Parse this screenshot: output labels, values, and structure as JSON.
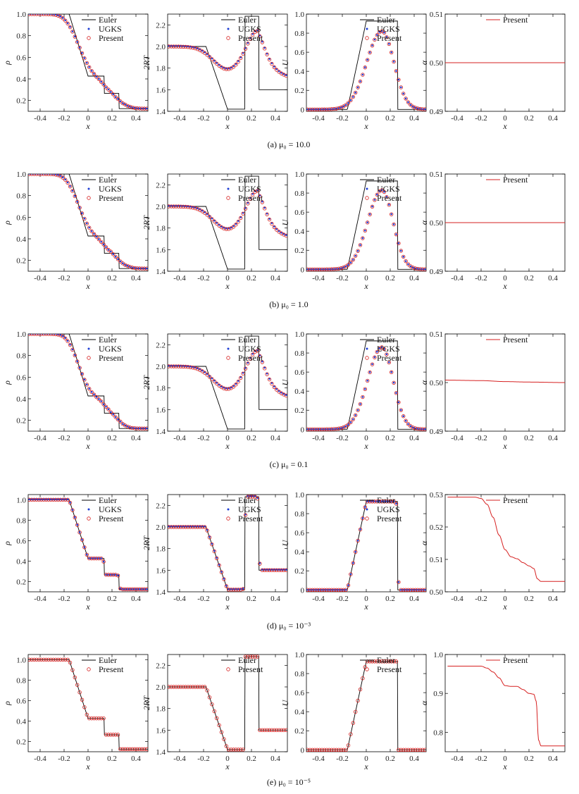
{
  "captions": [
    "(a) μ₀ = 10.0",
    "(b) μ₀ = 1.0",
    "(c) μ₀ = 0.1",
    "(d) μ₀ = 10⁻³",
    "(e) μ₀ = 10⁻⁵"
  ],
  "colors": {
    "euler": "#000000",
    "ugks": "#1f3fd6",
    "present": "#d62020"
  },
  "chart_data": [
    {
      "type": "line",
      "row": 0,
      "col": 0,
      "xlabel": "x",
      "ylabel": "ρ",
      "xlim": [
        -0.5,
        0.5
      ],
      "ylim": [
        0.1,
        1.0
      ],
      "xticks": [
        -0.4,
        -0.2,
        0,
        0.2,
        0.4
      ],
      "yticks": [
        0.2,
        0.4,
        0.6,
        0.8,
        1.0
      ],
      "legend": [
        "Euler",
        "UGKS",
        "Present"
      ],
      "profile": "rho",
      "eps": 0.3
    },
    {
      "type": "line",
      "row": 0,
      "col": 1,
      "xlabel": "x",
      "ylabel": "2RT",
      "xlim": [
        -0.5,
        0.5
      ],
      "ylim": [
        1.4,
        2.3
      ],
      "xticks": [
        -0.4,
        -0.2,
        0,
        0.2,
        0.4
      ],
      "yticks": [
        1.4,
        1.6,
        1.8,
        2.0,
        2.2
      ],
      "legend": [
        "Euler",
        "UGKS",
        "Present"
      ],
      "profile": "T",
      "eps": 0.3
    },
    {
      "type": "line",
      "row": 0,
      "col": 2,
      "xlabel": "x",
      "ylabel": "U",
      "xlim": [
        -0.5,
        0.5
      ],
      "ylim": [
        -0.02,
        1.0
      ],
      "xticks": [
        -0.4,
        -0.2,
        0,
        0.2,
        0.4
      ],
      "yticks": [
        0,
        0.2,
        0.4,
        0.6,
        0.8,
        1.0
      ],
      "legend": [
        "Euler",
        "UGKS",
        "Present"
      ],
      "profile": "U",
      "eps": 0.3
    },
    {
      "type": "line",
      "row": 0,
      "col": 3,
      "xlabel": "x",
      "ylabel": "α",
      "xlim": [
        -0.5,
        0.5
      ],
      "ylim": [
        0.49,
        0.51
      ],
      "xticks": [
        -0.4,
        -0.2,
        0,
        0.2,
        0.4
      ],
      "yticks": [
        0.49,
        0.5,
        0.51
      ],
      "legend": [
        "Present"
      ],
      "profile": "alpha",
      "alpha": {
        "x": [
          -0.5,
          0.5
        ],
        "y": [
          0.5,
          0.5
        ]
      }
    },
    {
      "type": "line",
      "row": 1,
      "col": 0,
      "xlabel": "x",
      "ylabel": "ρ",
      "xlim": [
        -0.5,
        0.5
      ],
      "ylim": [
        0.1,
        1.0
      ],
      "xticks": [
        -0.4,
        -0.2,
        0,
        0.2,
        0.4
      ],
      "yticks": [
        0.2,
        0.4,
        0.6,
        0.8,
        1.0
      ],
      "legend": [
        "Euler",
        "UGKS",
        "Present"
      ],
      "profile": "rho",
      "eps": 0.28
    },
    {
      "type": "line",
      "row": 1,
      "col": 1,
      "xlabel": "x",
      "ylabel": "2RT",
      "xlim": [
        -0.5,
        0.5
      ],
      "ylim": [
        1.4,
        2.3
      ],
      "xticks": [
        -0.4,
        -0.2,
        0,
        0.2,
        0.4
      ],
      "yticks": [
        1.4,
        1.6,
        1.8,
        2.0,
        2.2
      ],
      "legend": [
        "Euler",
        "UGKS",
        "Present"
      ],
      "profile": "T",
      "eps": 0.28
    },
    {
      "type": "line",
      "row": 1,
      "col": 2,
      "xlabel": "x",
      "ylabel": "U",
      "xlim": [
        -0.5,
        0.5
      ],
      "ylim": [
        -0.02,
        1.0
      ],
      "xticks": [
        -0.4,
        -0.2,
        0,
        0.2,
        0.4
      ],
      "yticks": [
        0,
        0.2,
        0.4,
        0.6,
        0.8,
        1.0
      ],
      "legend": [
        "Euler",
        "UGKS",
        "Present"
      ],
      "profile": "U",
      "eps": 0.28
    },
    {
      "type": "line",
      "row": 1,
      "col": 3,
      "xlabel": "x",
      "ylabel": "α",
      "xlim": [
        -0.5,
        0.5
      ],
      "ylim": [
        0.49,
        0.51
      ],
      "xticks": [
        -0.4,
        -0.2,
        0,
        0.2,
        0.4
      ],
      "yticks": [
        0.49,
        0.5,
        0.51
      ],
      "legend": [
        "Present"
      ],
      "profile": "alpha",
      "alpha": {
        "x": [
          -0.5,
          0.5
        ],
        "y": [
          0.5,
          0.5
        ]
      }
    },
    {
      "type": "line",
      "row": 2,
      "col": 0,
      "xlabel": "x",
      "ylabel": "ρ",
      "xlim": [
        -0.5,
        0.5
      ],
      "ylim": [
        0.1,
        1.0
      ],
      "xticks": [
        -0.4,
        -0.2,
        0,
        0.2,
        0.4
      ],
      "yticks": [
        0.2,
        0.4,
        0.6,
        0.8,
        1.0
      ],
      "legend": [
        "Euler",
        "UGKS",
        "Present"
      ],
      "profile": "rho",
      "eps": 0.24
    },
    {
      "type": "line",
      "row": 2,
      "col": 1,
      "xlabel": "x",
      "ylabel": "2RT",
      "xlim": [
        -0.5,
        0.5
      ],
      "ylim": [
        1.4,
        2.3
      ],
      "xticks": [
        -0.4,
        -0.2,
        0,
        0.2,
        0.4
      ],
      "yticks": [
        1.4,
        1.6,
        1.8,
        2.0,
        2.2
      ],
      "legend": [
        "Euler",
        "UGKS",
        "Present"
      ],
      "profile": "T",
      "eps": 0.24
    },
    {
      "type": "line",
      "row": 2,
      "col": 2,
      "xlabel": "x",
      "ylabel": "U",
      "xlim": [
        -0.5,
        0.5
      ],
      "ylim": [
        -0.02,
        1.0
      ],
      "xticks": [
        -0.4,
        -0.2,
        0,
        0.2,
        0.4
      ],
      "yticks": [
        0,
        0.2,
        0.4,
        0.6,
        0.8,
        1.0
      ],
      "legend": [
        "Euler",
        "UGKS",
        "Present"
      ],
      "profile": "U",
      "eps": 0.24
    },
    {
      "type": "line",
      "row": 2,
      "col": 3,
      "xlabel": "x",
      "ylabel": "α",
      "xlim": [
        -0.5,
        0.5
      ],
      "ylim": [
        0.49,
        0.51
      ],
      "xticks": [
        -0.4,
        -0.2,
        0,
        0.2,
        0.4
      ],
      "yticks": [
        0.49,
        0.5,
        0.51
      ],
      "legend": [
        "Present"
      ],
      "profile": "alpha",
      "alpha": {
        "x": [
          -0.5,
          -0.2,
          0,
          0.2,
          0.5
        ],
        "y": [
          0.5005,
          0.5004,
          0.5002,
          0.5001,
          0.5
        ]
      }
    },
    {
      "type": "line",
      "row": 3,
      "col": 0,
      "xlabel": "x",
      "ylabel": "ρ",
      "xlim": [
        -0.5,
        0.5
      ],
      "ylim": [
        0.1,
        1.05
      ],
      "xticks": [
        -0.4,
        -0.2,
        0,
        0.2,
        0.4
      ],
      "yticks": [
        0.2,
        0.4,
        0.6,
        0.8,
        1.0
      ],
      "legend": [
        "Euler",
        "UGKS",
        "Present"
      ],
      "profile": "rho",
      "eps": 0.012
    },
    {
      "type": "line",
      "row": 3,
      "col": 1,
      "xlabel": "x",
      "ylabel": "2RT",
      "xlim": [
        -0.5,
        0.5
      ],
      "ylim": [
        1.4,
        2.3
      ],
      "xticks": [
        -0.4,
        -0.2,
        0,
        0.2,
        0.4
      ],
      "yticks": [
        1.4,
        1.6,
        1.8,
        2.0,
        2.2
      ],
      "legend": [
        "Euler",
        "UGKS",
        "Present"
      ],
      "profile": "T",
      "eps": 0.012
    },
    {
      "type": "line",
      "row": 3,
      "col": 2,
      "xlabel": "x",
      "ylabel": "U",
      "xlim": [
        -0.5,
        0.5
      ],
      "ylim": [
        -0.02,
        1.0
      ],
      "xticks": [
        -0.4,
        -0.2,
        0,
        0.2,
        0.4
      ],
      "yticks": [
        0,
        0.2,
        0.4,
        0.6,
        0.8,
        1.0
      ],
      "legend": [
        "Euler",
        "UGKS",
        "Present"
      ],
      "profile": "U",
      "eps": 0.012
    },
    {
      "type": "line",
      "row": 3,
      "col": 3,
      "xlabel": "x",
      "ylabel": "α",
      "xlim": [
        -0.5,
        0.5
      ],
      "ylim": [
        0.5,
        0.53
      ],
      "xticks": [
        -0.4,
        -0.2,
        0,
        0.2,
        0.4
      ],
      "yticks": [
        0.5,
        0.51,
        0.52,
        0.53
      ],
      "legend": [
        "Present"
      ],
      "profile": "alpha",
      "alpha": {
        "x": [
          -0.48,
          -0.25,
          -0.2,
          -0.15,
          -0.1,
          -0.05,
          0,
          0.05,
          0.1,
          0.15,
          0.2,
          0.24,
          0.27,
          0.3,
          0.5
        ],
        "y": [
          0.5292,
          0.5292,
          0.5288,
          0.527,
          0.523,
          0.5175,
          0.513,
          0.5108,
          0.5102,
          0.509,
          0.508,
          0.5072,
          0.504,
          0.5032,
          0.5032
        ]
      }
    },
    {
      "type": "line",
      "row": 4,
      "col": 0,
      "xlabel": "x",
      "ylabel": "ρ",
      "xlim": [
        -0.5,
        0.5
      ],
      "ylim": [
        0.1,
        1.05
      ],
      "xticks": [
        -0.4,
        -0.2,
        0,
        0.2,
        0.4
      ],
      "yticks": [
        0.2,
        0.4,
        0.6,
        0.8,
        1.0
      ],
      "legend": [
        "Euler",
        "Present"
      ],
      "profile": "rho",
      "eps": 0.004
    },
    {
      "type": "line",
      "row": 4,
      "col": 1,
      "xlabel": "x",
      "ylabel": "2RT",
      "xlim": [
        -0.5,
        0.5
      ],
      "ylim": [
        1.4,
        2.3
      ],
      "xticks": [
        -0.4,
        -0.2,
        0,
        0.2,
        0.4
      ],
      "yticks": [
        1.4,
        1.6,
        1.8,
        2.0,
        2.2
      ],
      "legend": [
        "Euler",
        "Present"
      ],
      "profile": "T",
      "eps": 0.004
    },
    {
      "type": "line",
      "row": 4,
      "col": 2,
      "xlabel": "x",
      "ylabel": "U",
      "xlim": [
        -0.5,
        0.5
      ],
      "ylim": [
        -0.02,
        1.0
      ],
      "xticks": [
        -0.4,
        -0.2,
        0,
        0.2,
        0.4
      ],
      "yticks": [
        0,
        0.2,
        0.4,
        0.6,
        0.8,
        1.0
      ],
      "legend": [
        "Euler",
        "Present"
      ],
      "profile": "U",
      "eps": 0.004
    },
    {
      "type": "line",
      "row": 4,
      "col": 3,
      "xlabel": "x",
      "ylabel": "α",
      "xlim": [
        -0.5,
        0.5
      ],
      "ylim": [
        0.75,
        1.0
      ],
      "xticks": [
        -0.4,
        -0.2,
        0,
        0.2,
        0.4
      ],
      "yticks": [
        0.8,
        0.9,
        1.0
      ],
      "legend": [
        "Present"
      ],
      "profile": "alpha",
      "alpha": {
        "x": [
          -0.48,
          -0.2,
          -0.15,
          -0.1,
          -0.05,
          0,
          0.05,
          0.1,
          0.15,
          0.2,
          0.24,
          0.26,
          0.28,
          0.3,
          0.5
        ],
        "y": [
          0.97,
          0.97,
          0.965,
          0.955,
          0.94,
          0.92,
          0.918,
          0.918,
          0.91,
          0.9,
          0.898,
          0.88,
          0.78,
          0.765,
          0.765
        ]
      }
    }
  ]
}
